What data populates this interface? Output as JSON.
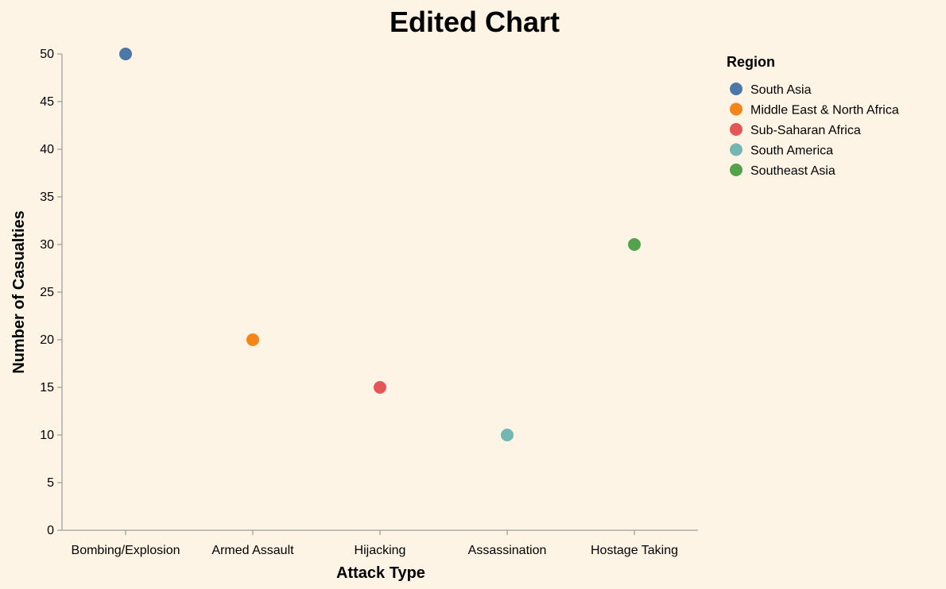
{
  "chart_data": {
    "type": "scatter",
    "title": "Edited Chart",
    "xlabel": "Attack Type",
    "ylabel": "Number of Casualties",
    "categories": [
      "Bombing/Explosion",
      "Armed Assault",
      "Hijacking",
      "Assassination",
      "Hostage Taking"
    ],
    "ylim": [
      0,
      50
    ],
    "yticks": [
      0,
      5,
      10,
      15,
      20,
      25,
      30,
      35,
      40,
      45,
      50
    ],
    "grid": false,
    "legend": {
      "title": "Region",
      "placement": "right"
    },
    "points": [
      {
        "x": "Bombing/Explosion",
        "y": 50,
        "region": "South Asia",
        "color": "#4c78a8"
      },
      {
        "x": "Armed Assault",
        "y": 20,
        "region": "Middle East & North Africa",
        "color": "#f58518"
      },
      {
        "x": "Hijacking",
        "y": 15,
        "region": "Sub-Saharan Africa",
        "color": "#e45756"
      },
      {
        "x": "Assassination",
        "y": 10,
        "region": "South America",
        "color": "#72b7b2"
      },
      {
        "x": "Hostage Taking",
        "y": 30,
        "region": "Southeast Asia",
        "color": "#54a24b"
      }
    ],
    "legend_entries": [
      {
        "name": "South Asia",
        "color": "#4c78a8"
      },
      {
        "name": "Middle East & North Africa",
        "color": "#f58518"
      },
      {
        "name": "Sub-Saharan Africa",
        "color": "#e45756"
      },
      {
        "name": "South America",
        "color": "#72b7b2"
      },
      {
        "name": "Southeast Asia",
        "color": "#54a24b"
      }
    ]
  }
}
